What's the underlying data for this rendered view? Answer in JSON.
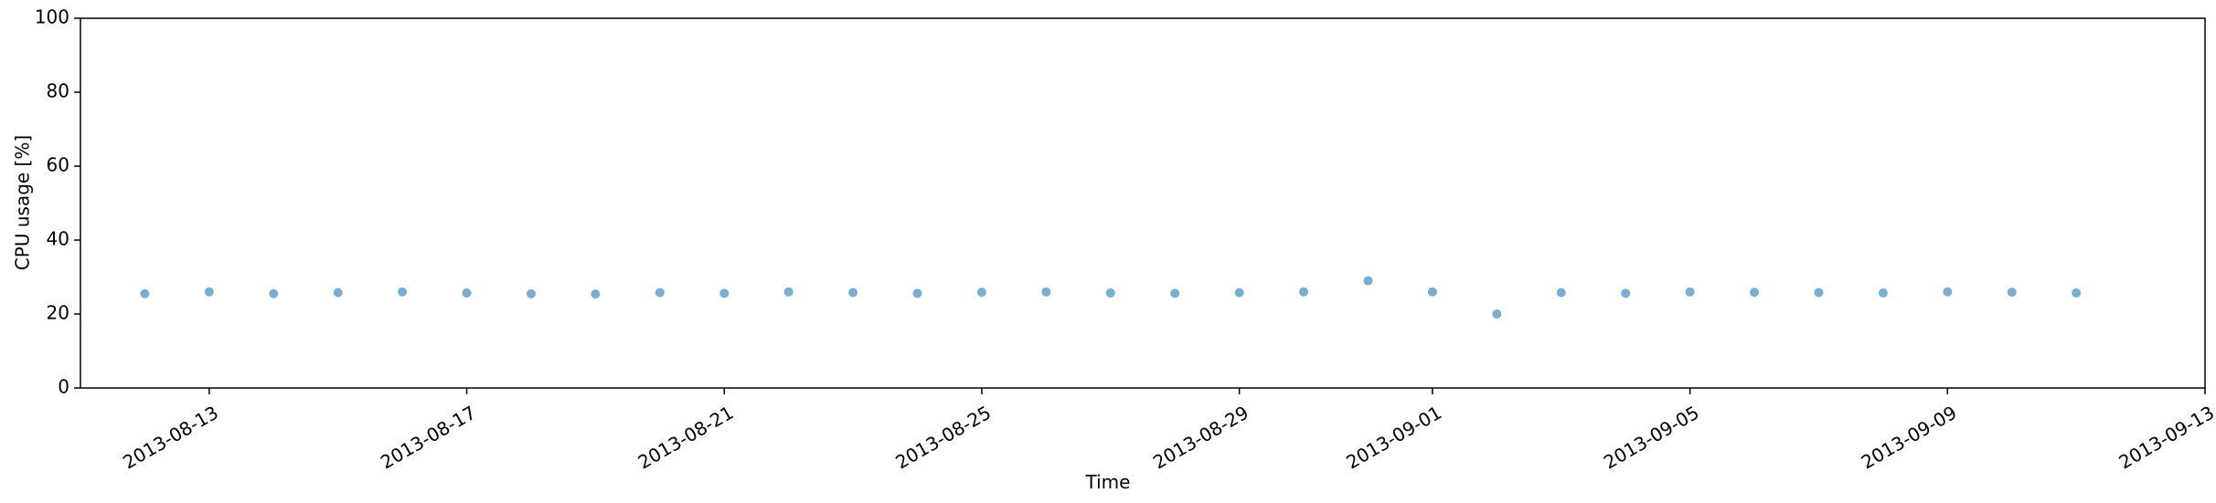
{
  "chart_data": {
    "type": "scatter",
    "x_label": "Time",
    "y_label": "CPU usage [%]",
    "series": [
      {
        "name": "CPU usage",
        "color": "#1f77b4",
        "x": [
          "2013-08-12",
          "2013-08-13",
          "2013-08-14",
          "2013-08-15",
          "2013-08-16",
          "2013-08-17",
          "2013-08-18",
          "2013-08-19",
          "2013-08-20",
          "2013-08-21",
          "2013-08-22",
          "2013-08-23",
          "2013-08-24",
          "2013-08-25",
          "2013-08-26",
          "2013-08-27",
          "2013-08-28",
          "2013-08-29",
          "2013-08-30",
          "2013-08-31",
          "2013-09-01",
          "2013-09-02",
          "2013-09-03",
          "2013-09-04",
          "2013-09-05",
          "2013-09-06",
          "2013-09-07",
          "2013-09-08",
          "2013-09-09",
          "2013-09-10",
          "2013-09-11"
        ],
        "values": [
          25.5,
          26,
          25.5,
          25.8,
          26,
          25.7,
          25.5,
          25.4,
          25.8,
          25.6,
          26,
          25.8,
          25.6,
          25.9,
          26,
          25.7,
          25.6,
          25.8,
          26,
          29,
          26,
          20,
          25.8,
          25.6,
          26,
          25.9,
          25.8,
          25.7,
          26,
          25.9,
          25.7
        ]
      }
    ],
    "xlim": [
      "2013-08-11",
      "2013-09-13"
    ],
    "xticks": [
      "2013-08-13",
      "2013-08-17",
      "2013-08-21",
      "2013-08-25",
      "2013-08-29",
      "2013-09-01",
      "2013-09-05",
      "2013-09-09",
      "2013-09-13"
    ],
    "ylim": [
      0,
      100
    ],
    "yticks": [
      0,
      20,
      40,
      60,
      80,
      100
    ],
    "grid": false
  }
}
